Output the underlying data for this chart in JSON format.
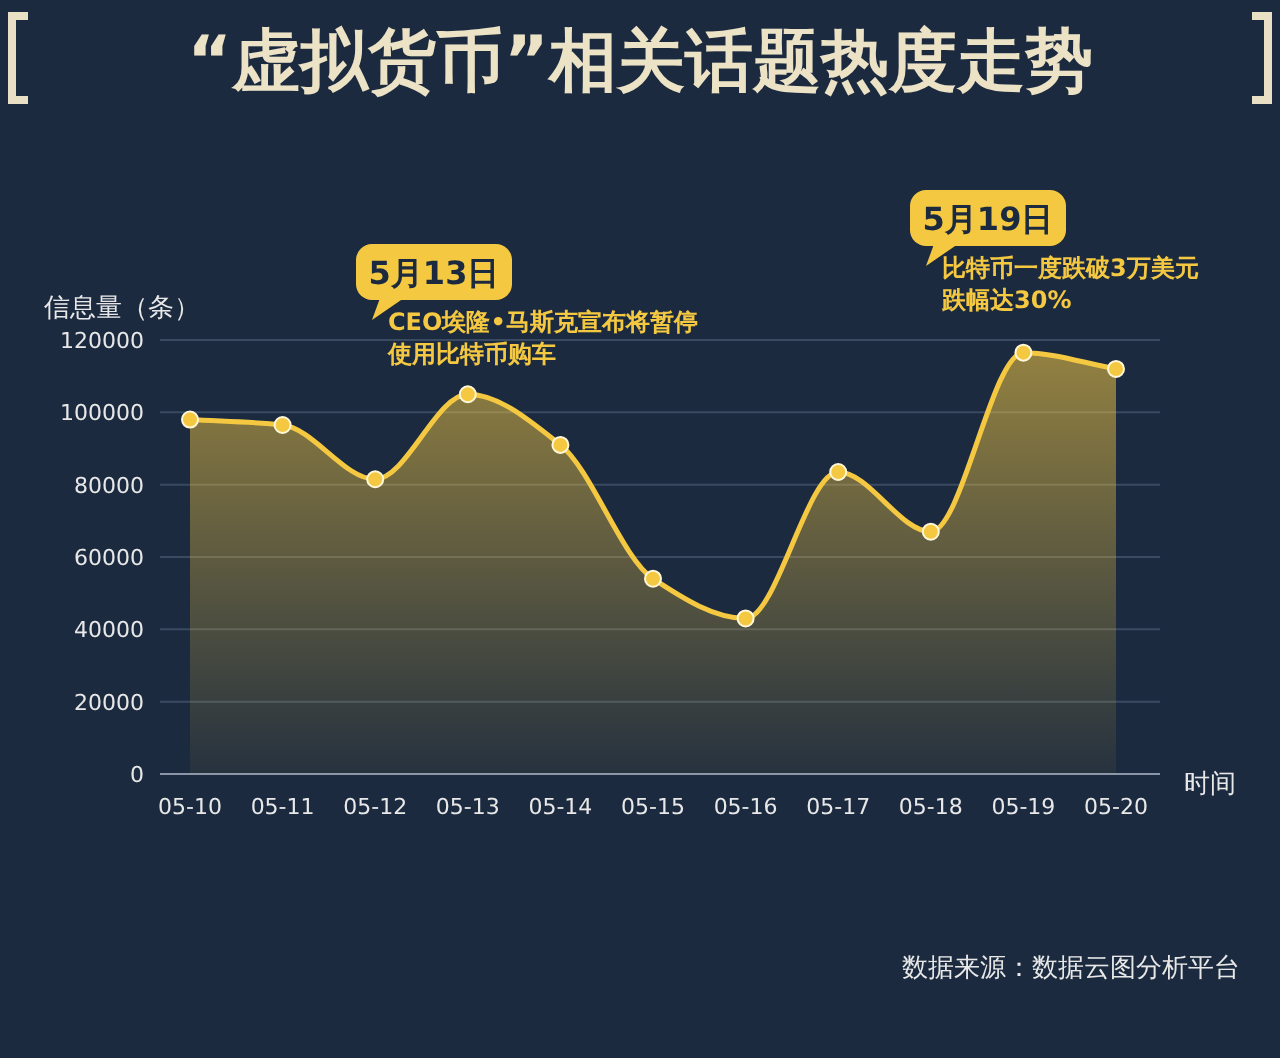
{
  "chart_data": {
    "type": "area",
    "title": "“虚拟货币”相关话题热度走势",
    "ylabel": "信息量（条）",
    "xlabel": "时间",
    "categories": [
      "05-10",
      "05-11",
      "05-12",
      "05-13",
      "05-14",
      "05-15",
      "05-16",
      "05-17",
      "05-18",
      "05-19",
      "05-20"
    ],
    "series": [
      {
        "color": "#f5c842",
        "values": [
          98000,
          96500,
          81500,
          105000,
          91000,
          54000,
          43000,
          83500,
          67000,
          116500,
          112000
        ]
      }
    ],
    "ylim": [
      0,
      120000
    ],
    "yticks": [
      0,
      20000,
      40000,
      60000,
      80000,
      100000,
      120000
    ],
    "grid": "y",
    "marker": "circle",
    "annotations": [
      "5月13日",
      "CEO埃隆•马斯克宣布将暂停使用比特币购车",
      "5月19日",
      "比特币一度跌破3万美元跌幅达30%",
      "数据来源：数据云图分析平台"
    ]
  }
}
